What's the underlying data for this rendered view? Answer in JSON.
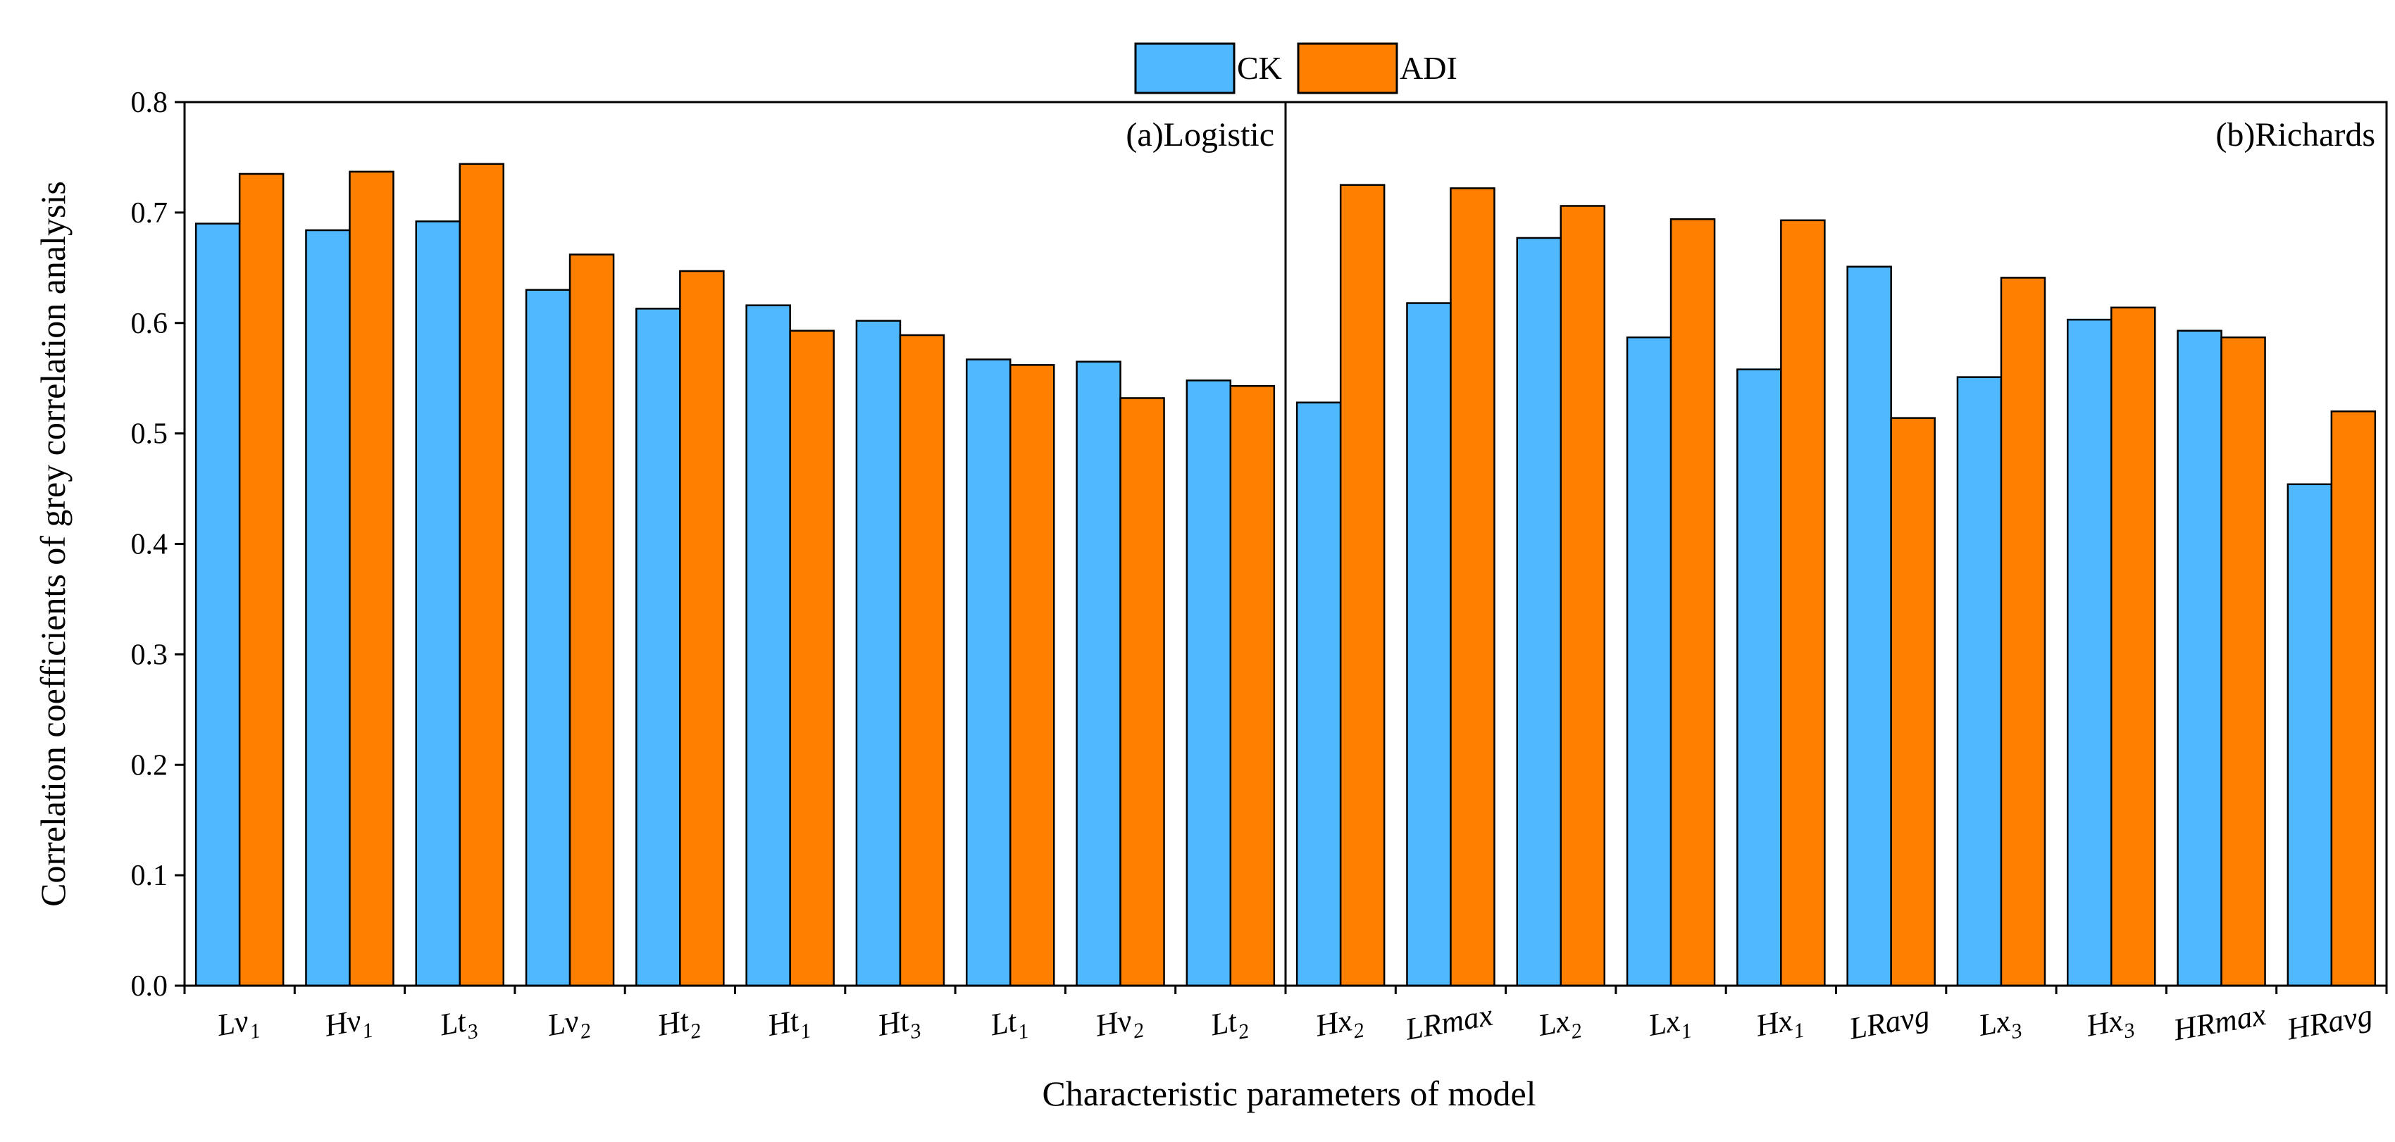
{
  "chart_data": {
    "type": "bar",
    "title": "",
    "xlabel": "Characteristic parameters of  model",
    "ylabel": "Correlation coefficients of grey correlation analysis",
    "ylim": [
      0,
      0.8
    ],
    "yticks": [
      "0.0",
      "0.1",
      "0.2",
      "0.3",
      "0.4",
      "0.5",
      "0.6",
      "0.7",
      "0.8"
    ],
    "legend": {
      "position": "top-center",
      "entries": [
        "CK",
        "ADI"
      ]
    },
    "panels": [
      {
        "label": "(a)Logistic",
        "start": 0,
        "end": 9
      },
      {
        "label": "(b)Richards",
        "start": 10,
        "end": 19
      }
    ],
    "categories": [
      {
        "base": "Lv",
        "sub": "1"
      },
      {
        "base": "Hv",
        "sub": "1"
      },
      {
        "base": "Lt",
        "sub": "3"
      },
      {
        "base": "Lv",
        "sub": "2"
      },
      {
        "base": "Ht",
        "sub": "2"
      },
      {
        "base": "Ht",
        "sub": "1"
      },
      {
        "base": "Ht",
        "sub": "3"
      },
      {
        "base": "Lt",
        "sub": "1"
      },
      {
        "base": "Hv",
        "sub": "2"
      },
      {
        "base": "Lt",
        "sub": "2"
      },
      {
        "base": "Hx",
        "sub": "2"
      },
      {
        "base": "LRmax",
        "sub": ""
      },
      {
        "base": "Lx",
        "sub": "2"
      },
      {
        "base": "Lx",
        "sub": "1"
      },
      {
        "base": "Hx",
        "sub": "1"
      },
      {
        "base": "LRavg",
        "sub": ""
      },
      {
        "base": "Lx",
        "sub": "3"
      },
      {
        "base": "Hx",
        "sub": "3"
      },
      {
        "base": "HRmax",
        "sub": ""
      },
      {
        "base": "HRavg",
        "sub": ""
      }
    ],
    "series": [
      {
        "name": "CK",
        "color": "#4FB8FF",
        "values": [
          0.69,
          0.684,
          0.692,
          0.63,
          0.613,
          0.616,
          0.602,
          0.567,
          0.565,
          0.548,
          0.528,
          0.618,
          0.677,
          0.587,
          0.558,
          0.651,
          0.551,
          0.603,
          0.593,
          0.454
        ]
      },
      {
        "name": "ADI",
        "color": "#FF8000",
        "values": [
          0.735,
          0.737,
          0.744,
          0.662,
          0.647,
          0.593,
          0.589,
          0.562,
          0.532,
          0.543,
          0.725,
          0.722,
          0.706,
          0.694,
          0.693,
          0.514,
          0.641,
          0.614,
          0.587,
          0.52
        ]
      }
    ]
  }
}
